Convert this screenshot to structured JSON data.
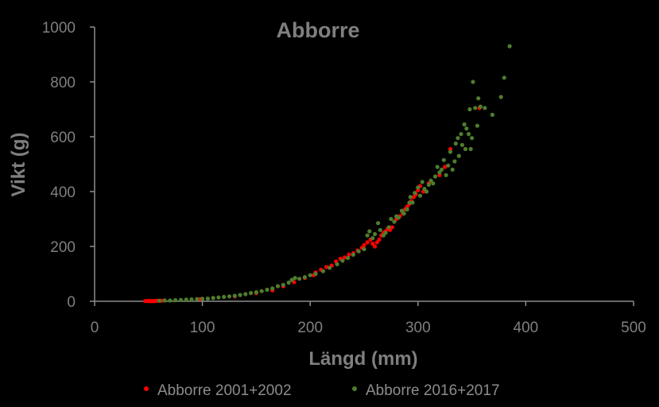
{
  "chart_data": {
    "type": "scatter",
    "title": "Abborre",
    "xlabel": "Längd (mm)",
    "ylabel": "Vikt (g)",
    "xlim": [
      0,
      500
    ],
    "ylim": [
      0,
      1000
    ],
    "xticks": [
      "0",
      "100",
      "200",
      "300",
      "400",
      "500"
    ],
    "yticks": [
      "0",
      "200",
      "400",
      "600",
      "800",
      "1000"
    ],
    "grid": false,
    "legend_position": "bottom",
    "series": [
      {
        "name": "Abborre 2001+2002",
        "color": "#ff0000",
        "points": [
          [
            47,
            1
          ],
          [
            49,
            1
          ],
          [
            50,
            1
          ],
          [
            51,
            1
          ],
          [
            52,
            1
          ],
          [
            53,
            1
          ],
          [
            54,
            1
          ],
          [
            55,
            1
          ],
          [
            56,
            1
          ],
          [
            57,
            1
          ],
          [
            58,
            2
          ],
          [
            60,
            2
          ],
          [
            62,
            2
          ],
          [
            98,
            8
          ],
          [
            110,
            12
          ],
          [
            130,
            18
          ],
          [
            150,
            30
          ],
          [
            165,
            40
          ],
          [
            175,
            55
          ],
          [
            185,
            70
          ],
          [
            195,
            85
          ],
          [
            203,
            95
          ],
          [
            205,
            105
          ],
          [
            210,
            115
          ],
          [
            215,
            125
          ],
          [
            220,
            130
          ],
          [
            224,
            145
          ],
          [
            228,
            155
          ],
          [
            232,
            160
          ],
          [
            236,
            170
          ],
          [
            240,
            175
          ],
          [
            244,
            185
          ],
          [
            248,
            195
          ],
          [
            250,
            205
          ],
          [
            253,
            215
          ],
          [
            256,
            225
          ],
          [
            258,
            210
          ],
          [
            260,
            200
          ],
          [
            262,
            215
          ],
          [
            264,
            225
          ],
          [
            266,
            240
          ],
          [
            268,
            250
          ],
          [
            270,
            255
          ],
          [
            272,
            265
          ],
          [
            274,
            260
          ],
          [
            276,
            270
          ],
          [
            278,
            290
          ],
          [
            280,
            300
          ],
          [
            283,
            310
          ],
          [
            286,
            320
          ],
          [
            288,
            335
          ],
          [
            290,
            345
          ],
          [
            292,
            355
          ],
          [
            294,
            365
          ],
          [
            296,
            380
          ],
          [
            298,
            390
          ],
          [
            300,
            405
          ],
          [
            302,
            420
          ],
          [
            305,
            400
          ],
          [
            310,
            430
          ],
          [
            320,
            460
          ],
          [
            325,
            490
          ],
          [
            330,
            555
          ],
          [
            357,
            705
          ]
        ]
      },
      {
        "name": "Abborre 2016+2017",
        "color": "#4e7d2e",
        "points": [
          [
            60,
            2
          ],
          [
            65,
            3
          ],
          [
            70,
            3
          ],
          [
            75,
            4
          ],
          [
            80,
            5
          ],
          [
            85,
            6
          ],
          [
            90,
            7
          ],
          [
            95,
            8
          ],
          [
            100,
            9
          ],
          [
            105,
            10
          ],
          [
            110,
            12
          ],
          [
            115,
            14
          ],
          [
            120,
            16
          ],
          [
            125,
            18
          ],
          [
            130,
            20
          ],
          [
            135,
            23
          ],
          [
            140,
            26
          ],
          [
            145,
            30
          ],
          [
            150,
            33
          ],
          [
            155,
            37
          ],
          [
            160,
            42
          ],
          [
            165,
            47
          ],
          [
            170,
            55
          ],
          [
            175,
            60
          ],
          [
            180,
            68
          ],
          [
            183,
            78
          ],
          [
            186,
            85
          ],
          [
            190,
            82
          ],
          [
            195,
            88
          ],
          [
            200,
            95
          ],
          [
            205,
            100
          ],
          [
            212,
            110
          ],
          [
            218,
            122
          ],
          [
            225,
            135
          ],
          [
            230,
            148
          ],
          [
            235,
            158
          ],
          [
            240,
            170
          ],
          [
            245,
            182
          ],
          [
            250,
            190
          ],
          [
            253,
            240
          ],
          [
            255,
            255
          ],
          [
            258,
            230
          ],
          [
            260,
            245
          ],
          [
            263,
            285
          ],
          [
            265,
            260
          ],
          [
            268,
            240
          ],
          [
            270,
            250
          ],
          [
            273,
            270
          ],
          [
            275,
            300
          ],
          [
            278,
            290
          ],
          [
            280,
            310
          ],
          [
            282,
            305
          ],
          [
            285,
            330
          ],
          [
            287,
            320
          ],
          [
            290,
            335
          ],
          [
            292,
            360
          ],
          [
            293,
            380
          ],
          [
            295,
            360
          ],
          [
            297,
            395
          ],
          [
            300,
            415
          ],
          [
            302,
            385
          ],
          [
            304,
            435
          ],
          [
            306,
            410
          ],
          [
            308,
            400
          ],
          [
            310,
            425
          ],
          [
            312,
            440
          ],
          [
            314,
            430
          ],
          [
            316,
            455
          ],
          [
            318,
            490
          ],
          [
            320,
            470
          ],
          [
            322,
            480
          ],
          [
            324,
            515
          ],
          [
            326,
            460
          ],
          [
            328,
            495
          ],
          [
            330,
            545
          ],
          [
            332,
            480
          ],
          [
            334,
            510
          ],
          [
            335,
            575
          ],
          [
            337,
            595
          ],
          [
            338,
            530
          ],
          [
            340,
            610
          ],
          [
            341,
            570
          ],
          [
            343,
            645
          ],
          [
            344,
            555
          ],
          [
            345,
            630
          ],
          [
            347,
            610
          ],
          [
            348,
            700
          ],
          [
            349,
            555
          ],
          [
            350,
            595
          ],
          [
            351,
            800
          ],
          [
            353,
            705
          ],
          [
            355,
            640
          ],
          [
            356,
            740
          ],
          [
            358,
            710
          ],
          [
            362,
            705
          ],
          [
            369,
            680
          ],
          [
            377,
            745
          ],
          [
            380,
            815
          ],
          [
            385,
            930
          ]
        ]
      }
    ]
  }
}
